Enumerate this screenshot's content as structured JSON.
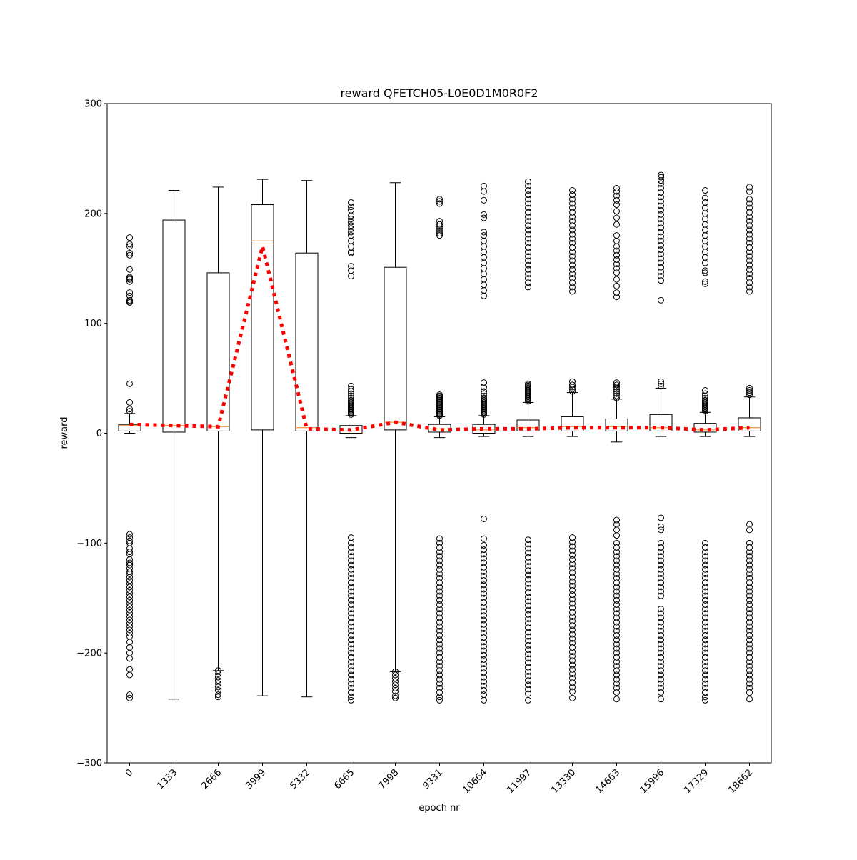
{
  "chart_data": {
    "type": "boxplot",
    "title": "reward QFETCH05-L0E0D1M0R0F2",
    "xlabel": "epoch nr",
    "ylabel": "reward",
    "ylim": [
      -300,
      300
    ],
    "yticks": [
      -300,
      -200,
      -100,
      0,
      100,
      200,
      300
    ],
    "ytick_labels": [
      "−300",
      "−200",
      "−100",
      "0",
      "100",
      "200",
      "300"
    ],
    "categories": [
      "0",
      "1333",
      "2666",
      "3999",
      "5332",
      "6665",
      "7998",
      "9331",
      "10664",
      "11997",
      "13330",
      "14663",
      "15996",
      "17329",
      "18662"
    ],
    "xtick_rotation_deg": 45,
    "grid": false,
    "colors": {
      "box": "#000000",
      "median": "#ff7f0e",
      "mean_line": "#ff0000",
      "background": "#ffffff"
    },
    "boxes": [
      {
        "whislo": 0,
        "q1": 2,
        "med": 7,
        "q3": 8,
        "whishi": 18,
        "fliers_high": [
          20,
          22,
          28,
          45,
          119,
          120,
          121,
          125,
          128,
          138,
          140,
          141,
          142,
          149,
          162,
          164,
          170,
          172,
          178
        ],
        "fliers_low": [
          -92,
          -95,
          -98,
          -100,
          -105,
          -108,
          -110,
          -115,
          -118,
          -120,
          -123,
          -126,
          -128,
          -131,
          -134,
          -137,
          -140,
          -143,
          -146,
          -149,
          -152,
          -155,
          -158,
          -161,
          -164,
          -167,
          -170,
          -173,
          -176,
          -179,
          -182,
          -185,
          -190,
          -195,
          -200,
          -205,
          -215,
          -220,
          -238,
          -241
        ]
      },
      {
        "whislo": -242,
        "q1": 1,
        "med": 7,
        "q3": 194,
        "whishi": 221,
        "fliers_high": [],
        "fliers_low": []
      },
      {
        "whislo": -216,
        "q1": 2,
        "med": 6,
        "q3": 146,
        "whishi": 224,
        "fliers_high": [],
        "fliers_low": [
          -216,
          -219,
          -222,
          -225,
          -228,
          -231,
          -234,
          -238,
          -240
        ]
      },
      {
        "whislo": -239,
        "q1": 3,
        "med": 175,
        "q3": 208,
        "whishi": 231,
        "fliers_high": [],
        "fliers_low": []
      },
      {
        "whislo": -240,
        "q1": 2,
        "med": 5,
        "q3": 164,
        "whishi": 230,
        "fliers_high": [],
        "fliers_low": []
      },
      {
        "whislo": -4,
        "q1": 0,
        "med": 2,
        "q3": 7,
        "whishi": 16,
        "fliers_high": [
          17,
          18,
          19,
          20,
          21,
          22,
          23,
          24,
          25,
          26,
          27,
          28,
          29,
          30,
          32,
          34,
          36,
          38,
          40,
          43,
          143,
          148,
          152,
          164,
          165,
          170,
          175,
          180,
          183,
          186,
          189,
          192,
          195,
          198,
          203,
          206,
          210
        ],
        "fliers_low": [
          -95,
          -100,
          -104,
          -108,
          -112,
          -116,
          -120,
          -124,
          -128,
          -132,
          -136,
          -140,
          -144,
          -148,
          -152,
          -156,
          -160,
          -164,
          -168,
          -172,
          -176,
          -180,
          -184,
          -188,
          -192,
          -196,
          -200,
          -204,
          -208,
          -212,
          -216,
          -220,
          -224,
          -228,
          -232,
          -236,
          -240,
          -243
        ]
      },
      {
        "whislo": -217,
        "q1": 3,
        "med": 10,
        "q3": 151,
        "whishi": 228,
        "fliers_high": [],
        "fliers_low": [
          -217,
          -220,
          -223,
          -226,
          -229,
          -232,
          -235,
          -239,
          -241
        ]
      },
      {
        "whislo": -4,
        "q1": 1,
        "med": 4,
        "q3": 8,
        "whishi": 15,
        "fliers_high": [
          16,
          17,
          18,
          19,
          20,
          21,
          22,
          23,
          24,
          25,
          26,
          27,
          28,
          29,
          30,
          31,
          32,
          33,
          34,
          35,
          180,
          182,
          184,
          186,
          188,
          190,
          193,
          209,
          211,
          213
        ],
        "fliers_low": [
          -96,
          -100,
          -104,
          -108,
          -112,
          -116,
          -120,
          -124,
          -128,
          -132,
          -136,
          -140,
          -144,
          -148,
          -152,
          -156,
          -160,
          -164,
          -168,
          -172,
          -176,
          -180,
          -184,
          -188,
          -192,
          -196,
          -200,
          -204,
          -208,
          -212,
          -216,
          -220,
          -224,
          -228,
          -232,
          -236,
          -240,
          -243
        ]
      },
      {
        "whislo": -3,
        "q1": 0,
        "med": 3,
        "q3": 8,
        "whishi": 16,
        "fliers_high": [
          17,
          18,
          19,
          20,
          21,
          22,
          23,
          24,
          25,
          26,
          27,
          28,
          29,
          30,
          31,
          32,
          34,
          36,
          38,
          42,
          46,
          125,
          130,
          135,
          140,
          145,
          150,
          155,
          160,
          165,
          170,
          175,
          180,
          183,
          196,
          199,
          212,
          220,
          225
        ],
        "fliers_low": [
          -78,
          -96,
          -102,
          -106,
          -110,
          -114,
          -118,
          -122,
          -126,
          -130,
          -134,
          -138,
          -142,
          -146,
          -150,
          -154,
          -158,
          -162,
          -166,
          -170,
          -174,
          -178,
          -182,
          -186,
          -190,
          -194,
          -198,
          -202,
          -206,
          -210,
          -214,
          -218,
          -222,
          -226,
          -230,
          -234,
          -238,
          -243
        ]
      },
      {
        "whislo": -3,
        "q1": 2,
        "med": 5,
        "q3": 12,
        "whishi": 28,
        "fliers_high": [
          29,
          30,
          31,
          32,
          33,
          34,
          35,
          36,
          37,
          38,
          39,
          40,
          41,
          42,
          43,
          44,
          45,
          133,
          137,
          141,
          145,
          149,
          153,
          157,
          161,
          165,
          169,
          173,
          177,
          181,
          185,
          189,
          193,
          197,
          201,
          205,
          209,
          213,
          217,
          221,
          225,
          229
        ],
        "fliers_low": [
          -97,
          -101,
          -105,
          -109,
          -113,
          -117,
          -121,
          -125,
          -129,
          -133,
          -137,
          -141,
          -145,
          -149,
          -153,
          -157,
          -161,
          -165,
          -169,
          -173,
          -177,
          -181,
          -185,
          -189,
          -193,
          -197,
          -201,
          -205,
          -209,
          -213,
          -217,
          -221,
          -225,
          -229,
          -233,
          -237,
          -243
        ]
      },
      {
        "whislo": -3,
        "q1": 2,
        "med": 6,
        "q3": 15,
        "whishi": 37,
        "fliers_high": [
          38,
          40,
          42,
          44,
          47,
          129,
          133,
          137,
          141,
          145,
          149,
          153,
          157,
          161,
          165,
          169,
          173,
          177,
          181,
          185,
          189,
          193,
          197,
          201,
          205,
          209,
          213,
          217,
          221
        ],
        "fliers_low": [
          -95,
          -99,
          -103,
          -107,
          -111,
          -115,
          -119,
          -123,
          -127,
          -131,
          -135,
          -139,
          -143,
          -147,
          -151,
          -155,
          -159,
          -163,
          -167,
          -171,
          -175,
          -179,
          -183,
          -187,
          -191,
          -195,
          -199,
          -203,
          -207,
          -211,
          -215,
          -219,
          -223,
          -227,
          -231,
          -235,
          -241
        ]
      },
      {
        "whislo": -8,
        "q1": 2,
        "med": 6,
        "q3": 13,
        "whishi": 31,
        "fliers_high": [
          32,
          34,
          36,
          38,
          40,
          42,
          44,
          46,
          124,
          128,
          134,
          140,
          146,
          150,
          154,
          158,
          162,
          166,
          170,
          175,
          180,
          190,
          196,
          202,
          208,
          212,
          216,
          220,
          223
        ],
        "fliers_low": [
          -79,
          -83,
          -88,
          -93,
          -100,
          -104,
          -108,
          -112,
          -116,
          -120,
          -124,
          -128,
          -132,
          -136,
          -140,
          -144,
          -148,
          -152,
          -156,
          -160,
          -164,
          -168,
          -172,
          -176,
          -180,
          -184,
          -188,
          -192,
          -196,
          -200,
          -204,
          -208,
          -212,
          -216,
          -220,
          -224,
          -228,
          -232,
          -236,
          -242
        ]
      },
      {
        "whislo": -3,
        "q1": 2,
        "med": 5,
        "q3": 17,
        "whishi": 41,
        "fliers_high": [
          43,
          45,
          47,
          121,
          139,
          143,
          147,
          151,
          155,
          159,
          163,
          167,
          171,
          175,
          179,
          183,
          187,
          191,
          195,
          199,
          203,
          207,
          211,
          215,
          219,
          223,
          227,
          230,
          233,
          235
        ],
        "fliers_low": [
          -77,
          -85,
          -88,
          -100,
          -104,
          -108,
          -112,
          -116,
          -120,
          -124,
          -128,
          -132,
          -136,
          -140,
          -144,
          -148,
          -160,
          -164,
          -168,
          -172,
          -176,
          -180,
          -184,
          -188,
          -192,
          -196,
          -200,
          -204,
          -208,
          -212,
          -216,
          -220,
          -224,
          -228,
          -232,
          -236,
          -242
        ]
      },
      {
        "whislo": -3,
        "q1": 1,
        "med": 3,
        "q3": 9,
        "whishi": 19,
        "fliers_high": [
          20,
          21,
          22,
          23,
          24,
          25,
          26,
          27,
          28,
          29,
          30,
          32,
          34,
          36,
          39,
          136,
          138,
          146,
          148,
          155,
          160,
          165,
          170,
          175,
          180,
          185,
          190,
          195,
          200,
          205,
          210,
          214,
          221
        ],
        "fliers_low": [
          -100,
          -104,
          -108,
          -112,
          -116,
          -120,
          -124,
          -128,
          -132,
          -136,
          -140,
          -144,
          -148,
          -152,
          -156,
          -160,
          -164,
          -168,
          -172,
          -176,
          -180,
          -184,
          -188,
          -192,
          -196,
          -200,
          -204,
          -208,
          -212,
          -216,
          -220,
          -224,
          -228,
          -232,
          -236,
          -240,
          -243
        ]
      },
      {
        "whislo": -3,
        "q1": 2,
        "med": 5,
        "q3": 14,
        "whishi": 33,
        "fliers_high": [
          35,
          37,
          39,
          41,
          129,
          133,
          137,
          141,
          145,
          149,
          153,
          157,
          161,
          165,
          169,
          173,
          177,
          181,
          185,
          189,
          193,
          197,
          201,
          205,
          209,
          213,
          220,
          224
        ],
        "fliers_low": [
          -83,
          -88,
          -100,
          -104,
          -108,
          -112,
          -116,
          -120,
          -124,
          -128,
          -132,
          -136,
          -140,
          -144,
          -148,
          -152,
          -156,
          -160,
          -164,
          -168,
          -172,
          -176,
          -180,
          -184,
          -188,
          -192,
          -196,
          -200,
          -204,
          -208,
          -212,
          -216,
          -220,
          -224,
          -228,
          -232,
          -236,
          -242
        ]
      }
    ],
    "mean_line": [
      8,
      7,
      6,
      170,
      4,
      3,
      10,
      3,
      4,
      4,
      5,
      5,
      5,
      3,
      5
    ]
  }
}
